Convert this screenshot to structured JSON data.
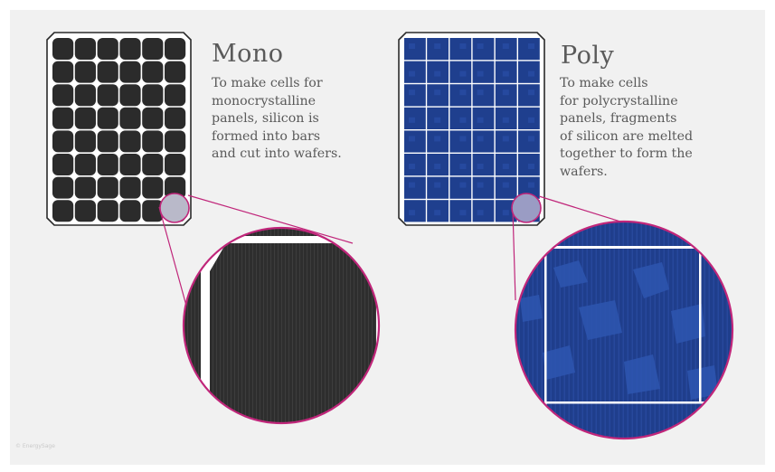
{
  "mono": {
    "title": "Mono",
    "description": "To make cells for\nmonocrystalline\npanels, silicon is\nformed into bars\nand cut into wafers."
  },
  "poly": {
    "title": "Poly",
    "description": "To make cells\nfor polycrystalline\npanels, fragments\nof silicon are melted\ntogether to form the\nwafers."
  },
  "credit": "© EnergySage",
  "colors": {
    "background": "#f1f1f1",
    "mono_cell": "#2b2b2b",
    "poly_cell": "#1f3f8e",
    "accent_ring": "#c0267a",
    "highlight": "#b9b9c9"
  }
}
